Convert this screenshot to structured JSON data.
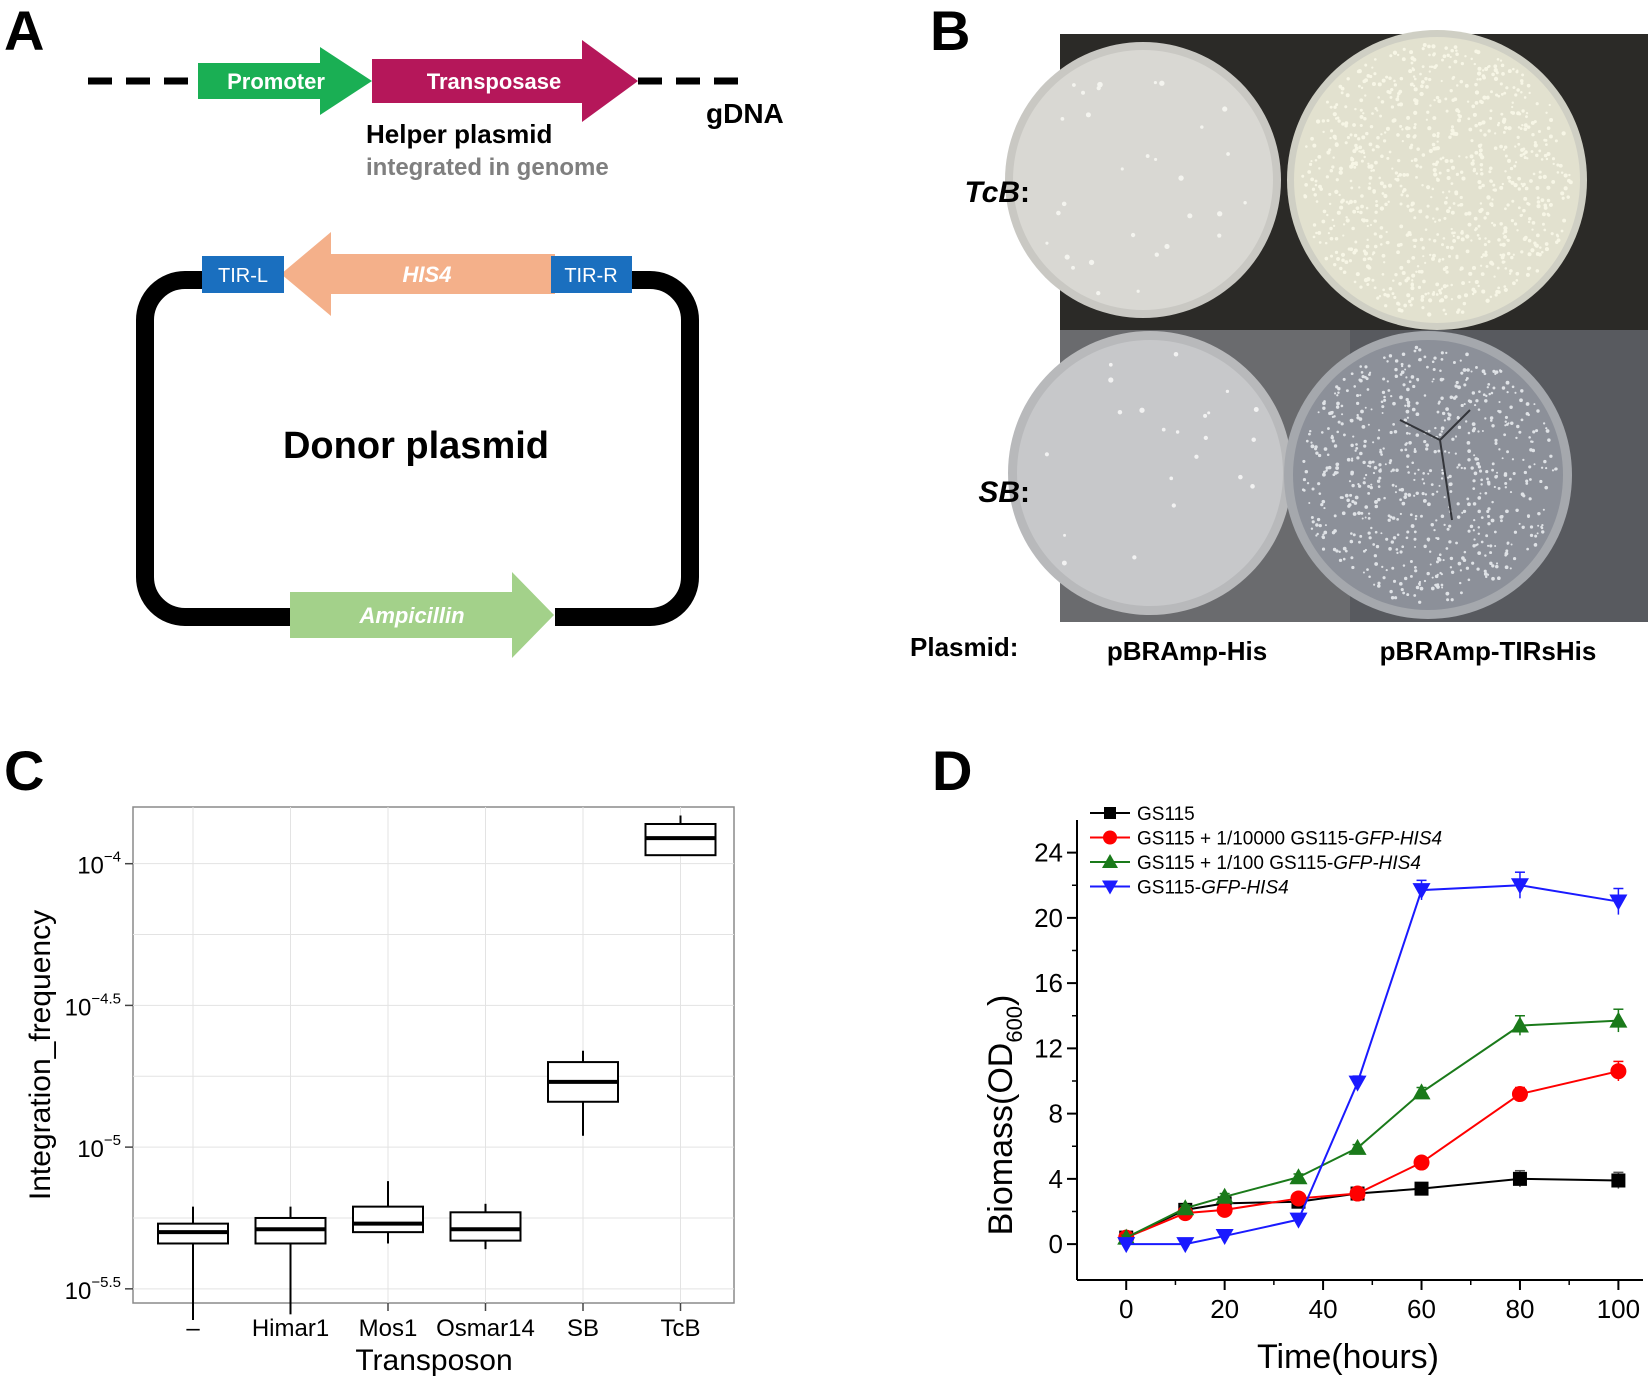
{
  "panel_labels": [
    "A",
    "B",
    "C",
    "D"
  ],
  "panelA": {
    "promoter": "Promoter",
    "transposase": "Transposase",
    "gdna": "gDNA",
    "helper_title": "Helper plasmid",
    "helper_sub": "integrated in genome",
    "tir_left": "TIR-L",
    "his4": "HIS4",
    "tir_right": "TIR-R",
    "donor": "Donor plasmid",
    "ampicillin": "Ampicillin",
    "colors": {
      "promoter": "#1aaf54",
      "transposase": "#b5175a",
      "tir": "#1a6fbf",
      "his4": "#f4b08a",
      "ampicillin": "#a3d18a"
    }
  },
  "panelB": {
    "row_labels": [
      "TcB",
      "SB"
    ],
    "plasmid_label": "Plasmid:",
    "plasmids": [
      "pBRAmp-His",
      "pBRAmp-TIRsHis"
    ]
  },
  "chart_data": [
    {
      "type": "box",
      "xlabel": "Transposon",
      "ylabel": "Integration_frequency",
      "y_scale": "log10",
      "ylim_log10": [
        -5.55,
        -3.8
      ],
      "yticks": [
        {
          "value": -4,
          "base": "10",
          "exp": "−4"
        },
        {
          "value": -4.5,
          "base": "10",
          "exp": "−4.5"
        },
        {
          "value": -5,
          "base": "10",
          "exp": "−5"
        },
        {
          "value": -5.5,
          "base": "10",
          "exp": "−5.5"
        }
      ],
      "categories": [
        "–",
        "Himar1",
        "Mos1",
        "Osmar14",
        "SB",
        "TcB"
      ],
      "boxes_log10": [
        {
          "min": -5.61,
          "q1": -5.34,
          "median": -5.3,
          "q3": -5.27,
          "max": -5.21
        },
        {
          "min": -5.59,
          "q1": -5.34,
          "median": -5.29,
          "q3": -5.25,
          "max": -5.21
        },
        {
          "min": -5.34,
          "q1": -5.3,
          "median": -5.27,
          "q3": -5.21,
          "max": -5.12
        },
        {
          "min": -5.36,
          "q1": -5.33,
          "median": -5.29,
          "q3": -5.23,
          "max": -5.2
        },
        {
          "min": -4.96,
          "q1": -4.84,
          "median": -4.77,
          "q3": -4.7,
          "max": -4.66
        },
        {
          "min": -3.97,
          "q1": -3.97,
          "median": -3.91,
          "q3": -3.86,
          "max": -3.83
        }
      ],
      "grid": true
    },
    {
      "type": "line",
      "xlabel": "Time(hours)",
      "ylabel": "Biomass(OD",
      "ylabel_sub": "600",
      "ylabel_close": ")",
      "xlim": [
        -10,
        105
      ],
      "ylim": [
        -2.2,
        26
      ],
      "xticks": [
        0,
        20,
        40,
        60,
        80,
        100
      ],
      "yticks": [
        0,
        4,
        8,
        12,
        16,
        20,
        24
      ],
      "legend_position": "top-left",
      "series": [
        {
          "name": "GS115",
          "name_italic": "",
          "color": "#000000",
          "marker": "square",
          "x": [
            0,
            12,
            20,
            35,
            47,
            60,
            80,
            100
          ],
          "y": [
            0.4,
            2.1,
            2.5,
            2.6,
            3.1,
            3.4,
            4.0,
            3.9
          ],
          "err": [
            0.15,
            0.2,
            0.2,
            0.2,
            0.2,
            0.2,
            0.5,
            0.5
          ]
        },
        {
          "name": "GS115 + 1/10000 GS115-",
          "name_italic": "GFP-HIS4",
          "color": "#ff0000",
          "marker": "circle",
          "x": [
            0,
            12,
            20,
            35,
            47,
            60,
            80,
            100
          ],
          "y": [
            0.4,
            1.9,
            2.1,
            2.8,
            3.1,
            5.0,
            9.2,
            10.6
          ],
          "err": [
            0.15,
            0.2,
            0.2,
            0.2,
            0.2,
            0.3,
            0.4,
            0.6
          ]
        },
        {
          "name": "GS115 + 1/100 GS115-",
          "name_italic": "GFP-HIS4",
          "color": "#1a7a1a",
          "marker": "triangle-up",
          "x": [
            0,
            12,
            20,
            35,
            47,
            60,
            80,
            100
          ],
          "y": [
            0.4,
            2.2,
            2.9,
            4.1,
            5.9,
            9.3,
            13.4,
            13.7
          ],
          "err": [
            0.15,
            0.2,
            0.2,
            0.2,
            0.2,
            0.3,
            0.6,
            0.7
          ]
        },
        {
          "name": "GS115-",
          "name_italic": "GFP-HIS4",
          "color": "#1a1aff",
          "marker": "triangle-down",
          "x": [
            0,
            12,
            20,
            35,
            47,
            60,
            80,
            100
          ],
          "y": [
            0.0,
            0.0,
            0.5,
            1.5,
            9.9,
            21.7,
            22.0,
            21.0
          ],
          "err": [
            0.1,
            0.1,
            0.1,
            0.2,
            0.4,
            0.6,
            0.8,
            0.8
          ]
        }
      ]
    }
  ]
}
